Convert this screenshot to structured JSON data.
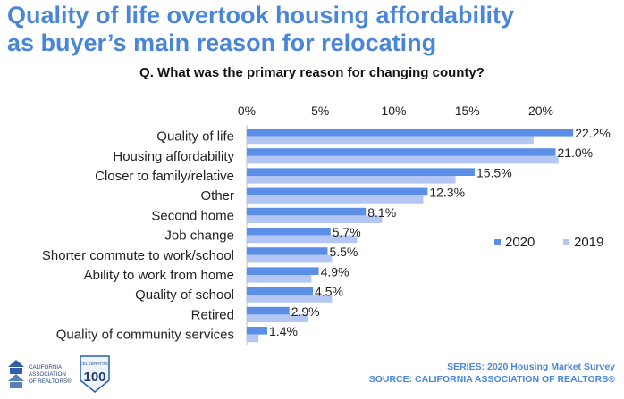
{
  "title": {
    "line1": "Quality of life overtook housing affordability",
    "line2": "as buyer’s main reason for relocating"
  },
  "question": "Q. What was the primary reason for changing county?",
  "footer": {
    "series": "SERIES: 2020 Housing Market Survey",
    "source": "SOURCE: CALIFORNIA ASSOCIATION OF REALTORS®"
  },
  "logos": {
    "car_line1": "CALIFORNIA",
    "car_line2": "ASSOCIATION",
    "car_line3": "OF REALTORS®",
    "badge_top": "CELEBRATING",
    "badge_number": "100"
  },
  "colors": {
    "title": "#4a86d8",
    "series_2020": "#5b8ee6",
    "series_2019": "#b4c7f4"
  },
  "chart_data": {
    "type": "bar",
    "orientation": "horizontal",
    "categories": [
      "Quality of life",
      "Housing affordability",
      "Closer to family/relative",
      "Other",
      "Second home",
      "Job change",
      "Shorter commute to work/school",
      "Ability to work from home",
      "Quality of school",
      "Retired",
      "Quality of community services"
    ],
    "series": [
      {
        "name": "2020",
        "values": [
          22.2,
          21.0,
          15.5,
          12.3,
          8.1,
          5.7,
          5.5,
          4.9,
          4.5,
          2.9,
          1.4
        ],
        "labels": [
          "22.2%",
          "21.0%",
          "15.5%",
          "12.3%",
          "8.1%",
          "5.7%",
          "5.5%",
          "4.9%",
          "4.5%",
          "2.9%",
          "1.4%"
        ]
      },
      {
        "name": "2019",
        "values": [
          19.5,
          21.2,
          14.2,
          12.0,
          9.2,
          7.5,
          5.8,
          4.4,
          5.8,
          4.2,
          0.8
        ]
      }
    ],
    "xlim": [
      0,
      22.5
    ],
    "x_ticks": [
      0,
      5,
      10,
      15,
      20
    ],
    "x_tick_labels": [
      "0%",
      "5%",
      "10%",
      "15%",
      "20%"
    ],
    "axis_position": "top",
    "grid": false,
    "legend_position": "right"
  }
}
